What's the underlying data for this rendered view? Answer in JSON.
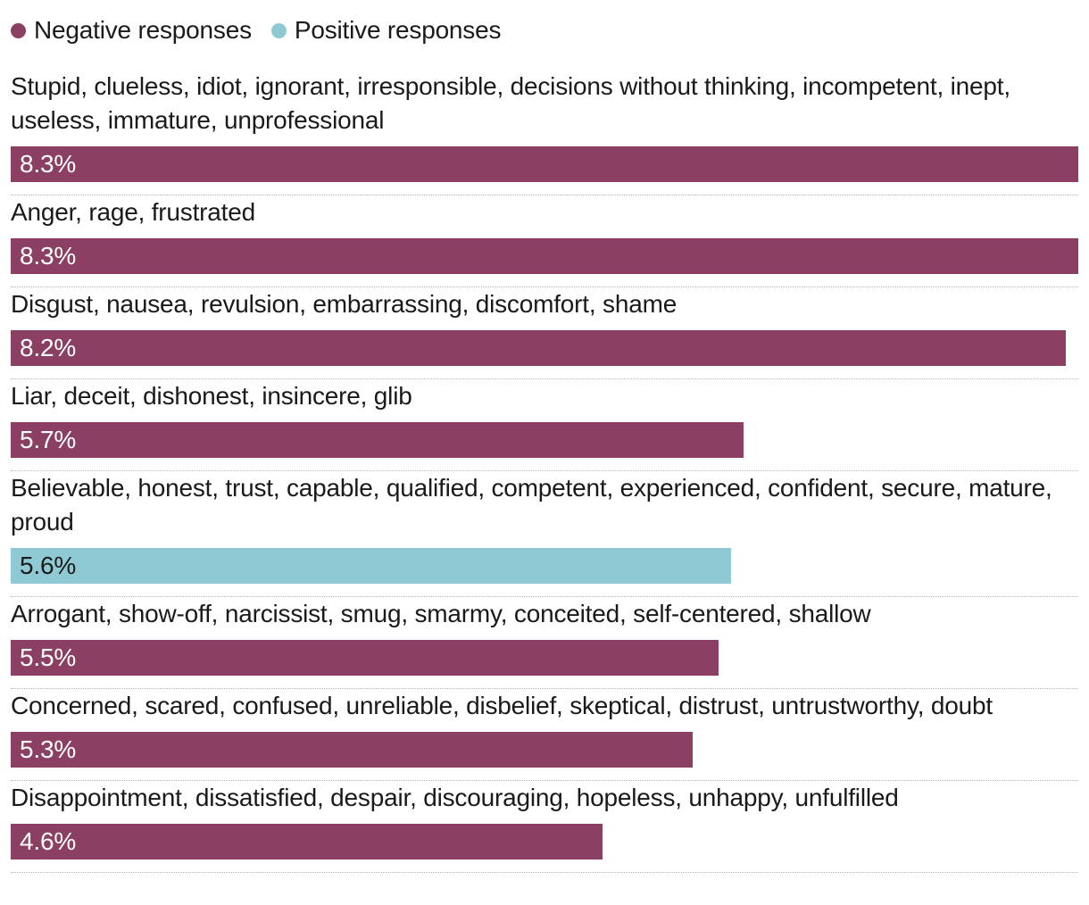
{
  "legend": [
    {
      "label": "Negative responses",
      "color": "#8b3f63"
    },
    {
      "label": "Positive responses",
      "color": "#8fcad4"
    }
  ],
  "chart_data": {
    "type": "bar",
    "orientation": "horizontal",
    "xlim": [
      0,
      8.3
    ],
    "categories": [
      "Stupid, clueless, idiot, ignorant, irresponsible, decisions without thinking, incompetent, inept, useless, immature, unprofessional",
      "Anger, rage, frustrated",
      "Disgust, nausea, revulsion, embarrassing, discomfort, shame",
      "Liar, deceit, dishonest, insincere, glib",
      "Believable, honest, trust, capable, qualified, competent, experienced, confident, secure, mature, proud",
      "Arrogant, show-off, narcissist, smug, smarmy, conceited, self-centered, shallow",
      "Concerned, scared, confused, unreliable, disbelief, skeptical, distrust, untrustworthy, doubt",
      "Disappointment, dissatisfied, despair, discouraging, hopeless, unhappy, unfulfilled"
    ],
    "values": [
      8.3,
      8.3,
      8.2,
      5.7,
      5.6,
      5.5,
      5.3,
      4.6
    ],
    "value_labels": [
      "8.3%",
      "8.3%",
      "8.2%",
      "5.7%",
      "5.6%",
      "5.5%",
      "5.3%",
      "4.6%"
    ],
    "sentiment": [
      "Negative responses",
      "Negative responses",
      "Negative responses",
      "Negative responses",
      "Positive responses",
      "Negative responses",
      "Negative responses",
      "Negative responses"
    ]
  }
}
